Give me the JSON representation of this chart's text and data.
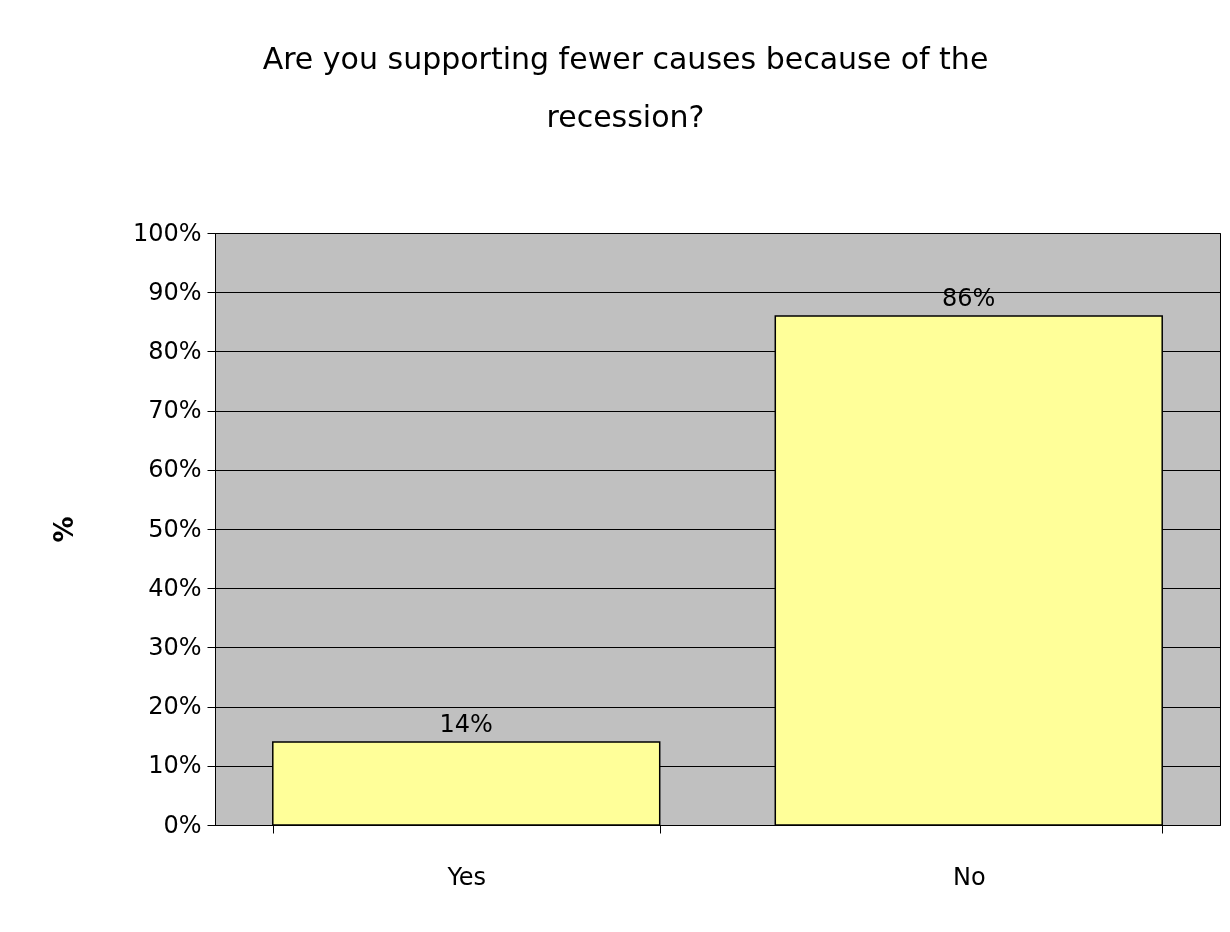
{
  "chart_data": {
    "type": "bar",
    "title": "Are you supporting fewer causes because of the recession?",
    "ylabel": "%",
    "categories": [
      "Yes",
      "No"
    ],
    "values": [
      14,
      86
    ],
    "value_labels": [
      "14%",
      "86%"
    ],
    "color": "#ffff99",
    "ylim": [
      0,
      100
    ],
    "yticks": [
      {
        "value": 0,
        "label": "0%"
      },
      {
        "value": 10,
        "label": "10%"
      },
      {
        "value": 20,
        "label": "20%"
      },
      {
        "value": 30,
        "label": "30%"
      },
      {
        "value": 40,
        "label": "40%"
      },
      {
        "value": 50,
        "label": "50%"
      },
      {
        "value": 60,
        "label": "60%"
      },
      {
        "value": 70,
        "label": "70%"
      },
      {
        "value": 80,
        "label": "80%"
      },
      {
        "value": 90,
        "label": "90%"
      },
      {
        "value": 100,
        "label": "100%"
      }
    ],
    "grid": "y"
  }
}
